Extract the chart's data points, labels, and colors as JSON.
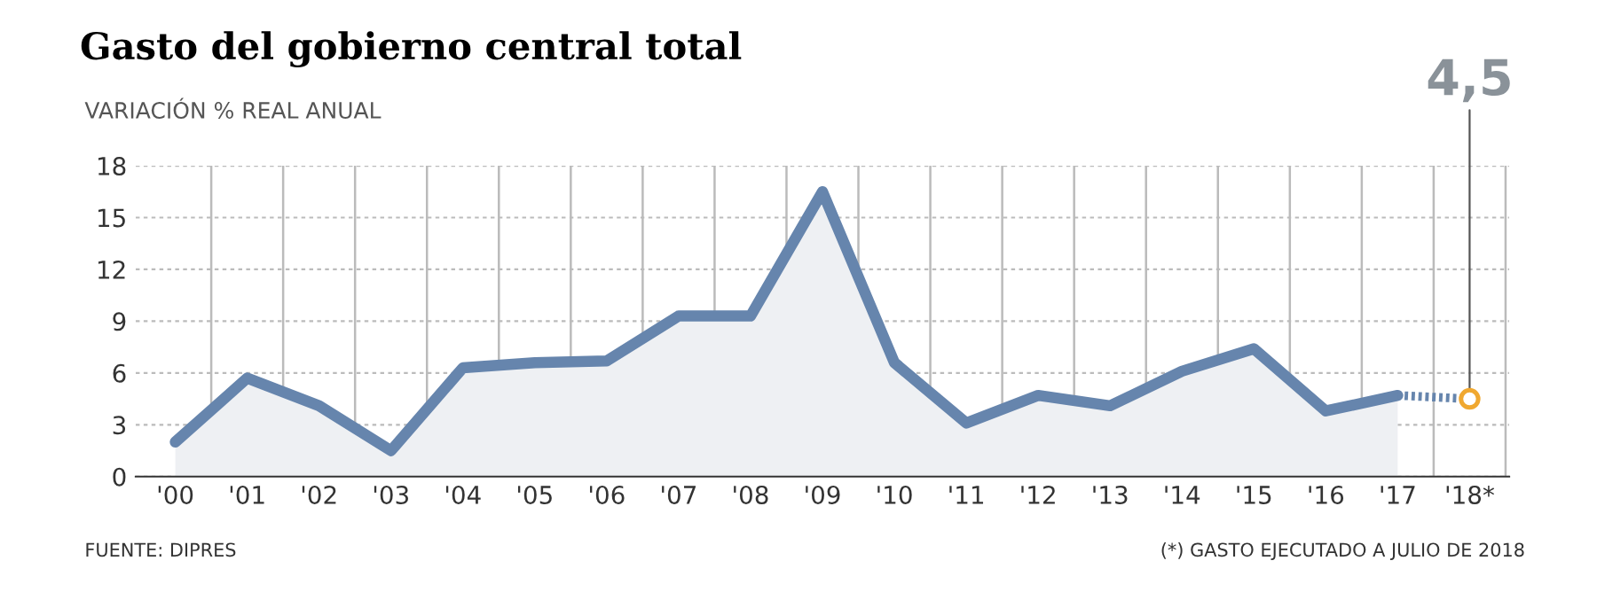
{
  "chart_data": {
    "type": "line",
    "title": "Gasto del gobierno central total",
    "subtitle": "VARIACIÓN % REAL ANUAL",
    "categories": [
      "'00",
      "'01",
      "'02",
      "'03",
      "'04",
      "'05",
      "'06",
      "'07",
      "'08",
      "'09",
      "'10",
      "'11",
      "'12",
      "'13",
      "'14",
      "'15",
      "'16",
      "'17",
      "'18*"
    ],
    "series": [
      {
        "type": "area",
        "color": "#6685ad",
        "line_style": "solid",
        "values": [
          2.0,
          5.7,
          4.1,
          1.5,
          6.3,
          6.6,
          6.7,
          9.3,
          9.3,
          16.5,
          6.6,
          3.1,
          4.7,
          4.1,
          6.1,
          7.4,
          3.8,
          4.7,
          null
        ]
      },
      {
        "type": "line",
        "color": "#6685ad",
        "line_style": "dotted",
        "marker": "circle",
        "colors": [
          null,
          null,
          null,
          null,
          null,
          null,
          null,
          null,
          null,
          null,
          null,
          null,
          null,
          null,
          null,
          null,
          null,
          null,
          "#f0a830"
        ],
        "values": [
          null,
          null,
          null,
          null,
          null,
          null,
          null,
          null,
          null,
          null,
          null,
          null,
          null,
          null,
          null,
          null,
          null,
          4.7,
          4.5
        ]
      }
    ],
    "ylim": [
      0,
      18
    ],
    "yticks": [
      0,
      3,
      6,
      9,
      12,
      15,
      18
    ],
    "grid": true,
    "annotations": [
      {
        "text": "4,5",
        "x": "'18*",
        "y": 4.5
      },
      "FUENTE: DIPRES",
      "(*) GASTO EJECUTADO A JULIO DE 2018"
    ]
  }
}
